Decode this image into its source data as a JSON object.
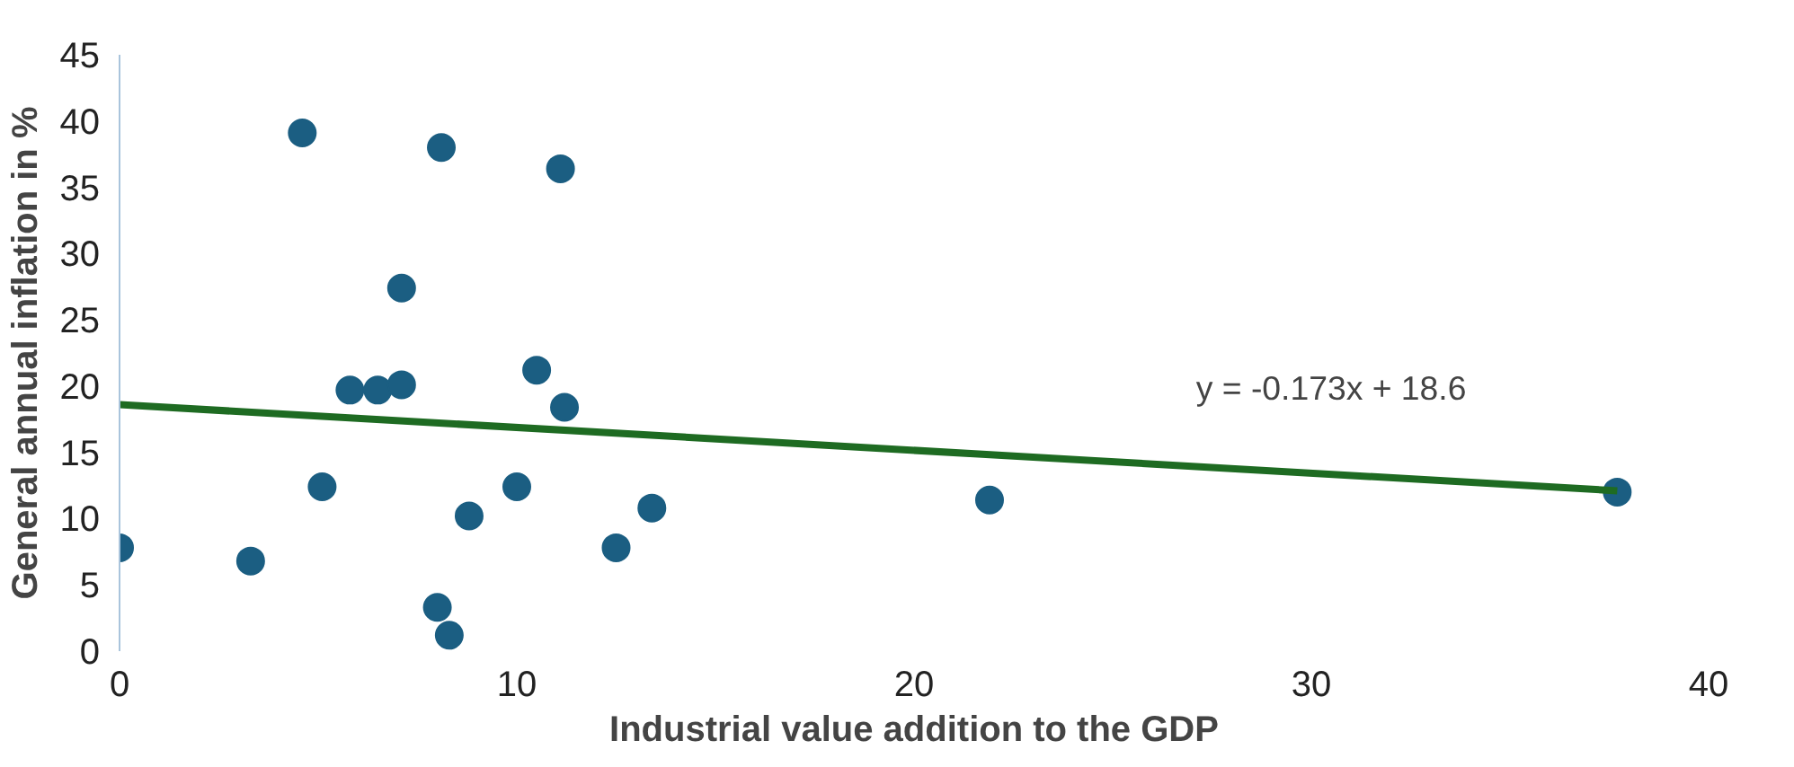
{
  "chart_data": {
    "type": "scatter",
    "xlabel": "Industrial value addition to the GDP",
    "ylabel": "General annual inflation in %",
    "xlim": [
      0,
      40
    ],
    "xticks": [
      0,
      10,
      20,
      30,
      40
    ],
    "ylim": [
      0,
      45
    ],
    "yticks": [
      0,
      5,
      10,
      15,
      20,
      25,
      30,
      35,
      40,
      45
    ],
    "grid": false,
    "series": [
      {
        "marker": "circle",
        "color": "#1b5e82",
        "x": [
          0,
          3.3,
          4.6,
          5.1,
          5.8,
          6.5,
          7.1,
          7.1,
          8.0,
          8.1,
          8.3,
          8.8,
          10.0,
          10.5,
          11.1,
          11.2,
          12.5,
          13.4,
          21.9,
          37.7
        ],
        "values": [
          7.8,
          6.8,
          39.1,
          12.4,
          19.7,
          19.7,
          27.4,
          20.1,
          3.3,
          38.0,
          1.2,
          10.2,
          12.4,
          21.2,
          36.4,
          18.4,
          7.8,
          10.8,
          11.4,
          12.0
        ]
      },
      {
        "type": "line",
        "color": "#1e6b22",
        "x": [
          0,
          37.7
        ],
        "values": [
          18.6,
          12.1
        ]
      }
    ],
    "annotations": [
      "y = -0.173x + 18.6"
    ]
  }
}
